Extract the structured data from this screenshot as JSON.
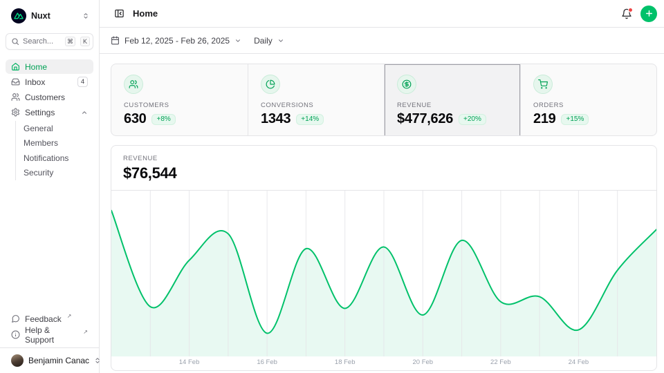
{
  "sidebar": {
    "workspace": {
      "name": "Nuxt"
    },
    "search": {
      "placeholder": "Search...",
      "shortcut_keys": [
        "⌘",
        "K"
      ]
    },
    "nav": [
      {
        "label": "Home",
        "active": true
      },
      {
        "label": "Inbox",
        "badge": "4"
      },
      {
        "label": "Customers"
      },
      {
        "label": "Settings",
        "expanded": true,
        "children": [
          "General",
          "Members",
          "Notifications",
          "Security"
        ]
      }
    ],
    "footer_links": [
      {
        "label": "Feedback",
        "external": true
      },
      {
        "label": "Help & Support",
        "external": true
      }
    ],
    "user": {
      "name": "Benjamin Canac"
    }
  },
  "header": {
    "title": "Home"
  },
  "toolbar": {
    "date_range": "Feb 12, 2025 - Feb 26, 2025",
    "granularity": "Daily"
  },
  "stats": {
    "cards": [
      {
        "label": "CUSTOMERS",
        "value": "630",
        "delta": "+8%",
        "icon": "users-icon",
        "selected": false
      },
      {
        "label": "CONVERSIONS",
        "value": "1343",
        "delta": "+14%",
        "icon": "pie-chart-icon",
        "selected": false
      },
      {
        "label": "REVENUE",
        "value": "$477,626",
        "delta": "+20%",
        "icon": "dollar-circle-icon",
        "selected": true
      },
      {
        "label": "ORDERS",
        "value": "219",
        "delta": "+15%",
        "icon": "cart-icon",
        "selected": false
      }
    ]
  },
  "chart": {
    "label": "REVENUE",
    "value": "$76,544"
  },
  "chart_data": {
    "type": "area",
    "title": "Daily revenue, Feb 12 2025 – Feb 26 2025",
    "x": [
      "Feb 12",
      "Feb 13",
      "Feb 14",
      "Feb 15",
      "Feb 16",
      "Feb 17",
      "Feb 18",
      "Feb 19",
      "Feb 20",
      "Feb 21",
      "Feb 22",
      "Feb 23",
      "Feb 24",
      "Feb 25",
      "Feb 26"
    ],
    "values": [
      88000,
      30000,
      58000,
      74000,
      14000,
      65000,
      29000,
      66000,
      25000,
      70000,
      33000,
      36000,
      16000,
      52000,
      76544
    ],
    "ylim": [
      0,
      100000
    ],
    "ticks": [
      {
        "i": 2,
        "label": "14 Feb"
      },
      {
        "i": 4,
        "label": "16 Feb"
      },
      {
        "i": 6,
        "label": "18 Feb"
      },
      {
        "i": 8,
        "label": "20 Feb"
      },
      {
        "i": 10,
        "label": "22 Feb"
      },
      {
        "i": 12,
        "label": "24 Feb"
      }
    ],
    "grid": "vertical-only",
    "legend": false,
    "line_color": "#00C16A",
    "fill_color": "rgba(0,193,106,0.09)",
    "gridline_color": "#e4e4e7"
  },
  "colors": {
    "primary_green": "#00C16A",
    "green_text": "#00a155",
    "badge_bg": "#e7f8ef",
    "notification_dot": "#ef4444",
    "logo_bg": "#020420",
    "logo_green": "#00DC82",
    "border": "#e4e4e7"
  }
}
